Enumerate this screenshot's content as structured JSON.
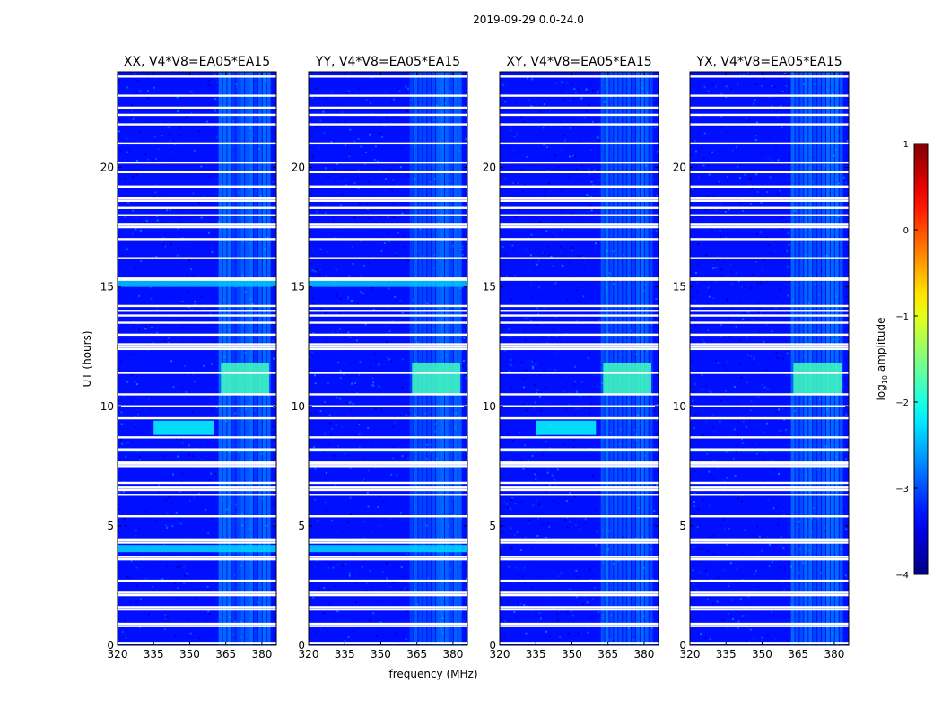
{
  "figure": {
    "suptitle": "2019-09-29 0.0-24.0",
    "xlabel": "frequency (MHz)",
    "ylabel": "UT (hours)"
  },
  "chart_data": {
    "type": "heatmap",
    "x_range_mhz": [
      320,
      386
    ],
    "y_range_hours": [
      0,
      24
    ],
    "xticks": [
      320,
      335,
      350,
      365,
      380
    ],
    "yticks": [
      0,
      5,
      10,
      15,
      20
    ],
    "colormap": "jet",
    "colorbar": {
      "label": "log10 amplitude",
      "label_base": "log",
      "label_sub": "10",
      "label_rest": " amplitude",
      "range": [
        -4,
        1
      ],
      "ticks": [
        -4,
        -3,
        -2,
        -1,
        0,
        1
      ],
      "tick_labels": [
        "−4",
        "−3",
        "−2",
        "−1",
        "0",
        "1"
      ]
    },
    "panels": [
      {
        "title": "XX, V4*V8=EA05*EA15",
        "pol": "XX"
      },
      {
        "title": "YY, V4*V8=EA05*EA15",
        "pol": "YY"
      },
      {
        "title": "XY, V4*V8=EA05*EA15",
        "pol": "XY"
      },
      {
        "title": "YX, V4*V8=EA05*EA15",
        "pol": "YX"
      }
    ],
    "background_level": -3.3,
    "flagged_gaps_hours": [
      0.1,
      0.8,
      0.9,
      1.5,
      1.6,
      2.1,
      2.2,
      2.7,
      3.6,
      3.7,
      4.3,
      4.4,
      5.4,
      6.3,
      6.5,
      6.6,
      6.8,
      7.5,
      7.6,
      7.65,
      8.2,
      8.7,
      9.5,
      10.0,
      10.5,
      11.4,
      12.4,
      12.5,
      12.6,
      13.0,
      13.5,
      13.8,
      14.0,
      14.2,
      15.3,
      15.35,
      16.2,
      17.0,
      17.5,
      17.6,
      18.0,
      18.3,
      18.6,
      18.7,
      19.2,
      19.8,
      20.2,
      21.0,
      21.8,
      22.2,
      22.5,
      23.0,
      23.8
    ],
    "features": [
      {
        "name": "rfi-band",
        "freq_mhz": [
          362,
          384
        ],
        "ut_hours": [
          0,
          24
        ],
        "level": -2.7,
        "pols": [
          "XX",
          "YY",
          "XY",
          "YX"
        ]
      },
      {
        "name": "strong-rfi",
        "freq_mhz": [
          363,
          383
        ],
        "ut_hours": [
          10.5,
          11.8
        ],
        "level": -1.8,
        "pols": [
          "XX",
          "YY",
          "XY",
          "YX"
        ]
      },
      {
        "name": "rfi-burst",
        "freq_mhz": [
          335,
          360
        ],
        "ut_hours": [
          8.8,
          9.4
        ],
        "level": -2.1,
        "pols": [
          "XX",
          "XY"
        ]
      },
      {
        "name": "broadband-band",
        "freq_mhz": [
          320,
          386
        ],
        "ut_hours": [
          3.9,
          4.2
        ],
        "level": -2.3,
        "pols": [
          "XX",
          "YY"
        ]
      },
      {
        "name": "broadband-band",
        "freq_mhz": [
          320,
          386
        ],
        "ut_hours": [
          15.0,
          15.3
        ],
        "level": -2.4,
        "pols": [
          "XX",
          "YY"
        ]
      },
      {
        "name": "broadband-band",
        "freq_mhz": [
          320,
          386
        ],
        "ut_hours": [
          8.1,
          8.2
        ],
        "level": -2.2,
        "pols": [
          "XX",
          "YY",
          "XY",
          "YX"
        ]
      }
    ]
  }
}
